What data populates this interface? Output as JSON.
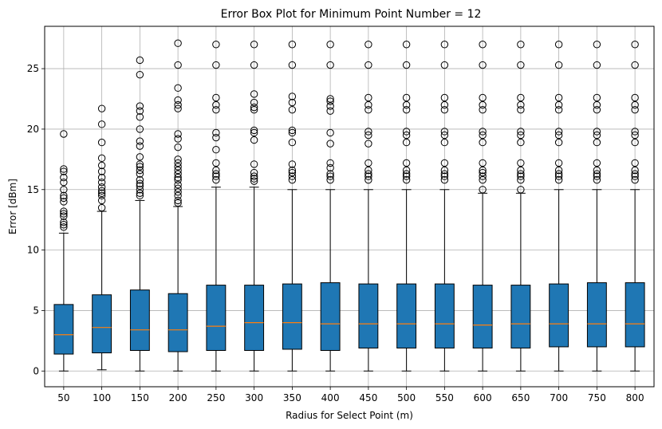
{
  "chart_data": {
    "type": "boxplot",
    "title": "Error Box Plot for Minimum Point Number = 12",
    "xlabel": "Radius for Select Point (m)",
    "ylabel": "Error [dBm]",
    "ylim": [
      -1.3,
      28.5
    ],
    "yticks": [
      0,
      5,
      10,
      15,
      20,
      25
    ],
    "grid": true,
    "box_color": "#1f77b4",
    "median_color": "#ff7f0e",
    "categories": [
      "50",
      "100",
      "150",
      "200",
      "250",
      "300",
      "350",
      "400",
      "450",
      "500",
      "550",
      "600",
      "650",
      "700",
      "750",
      "800"
    ],
    "boxes": [
      {
        "label": "50",
        "min": 0,
        "q1": 1.4,
        "median": 3.0,
        "q3": 5.5,
        "whisker_high": 11.4,
        "outliers": [
          11.9,
          12.1,
          12.3,
          12.8,
          13.0,
          13.2,
          14.0,
          14.3,
          14.5,
          15.0,
          15.6,
          16.0,
          16.5,
          16.7,
          19.6
        ]
      },
      {
        "label": "100",
        "min": 0.1,
        "q1": 1.5,
        "median": 3.6,
        "q3": 6.3,
        "whisker_high": 13.2,
        "outliers": [
          13.5,
          14.1,
          14.5,
          14.7,
          14.9,
          15.2,
          15.6,
          16.0,
          16.5,
          17.0,
          17.6,
          18.9,
          20.4,
          21.7
        ]
      },
      {
        "label": "150",
        "min": 0,
        "q1": 1.7,
        "median": 3.4,
        "q3": 6.7,
        "whisker_high": 14.1,
        "outliers": [
          14.5,
          14.7,
          15.0,
          15.3,
          15.5,
          15.8,
          16.3,
          16.6,
          16.9,
          17.1,
          17.7,
          18.6,
          19.0,
          20.0,
          21.0,
          21.5,
          21.9,
          24.5,
          25.7
        ]
      },
      {
        "label": "200",
        "min": 0,
        "q1": 1.6,
        "median": 3.4,
        "q3": 6.4,
        "whisker_high": 13.6,
        "outliers": [
          13.9,
          14.1,
          14.5,
          14.8,
          15.1,
          15.4,
          15.8,
          16.0,
          16.3,
          16.6,
          16.9,
          17.2,
          17.5,
          18.5,
          19.2,
          19.6,
          21.7,
          22.0,
          22.4,
          23.4,
          25.3,
          27.1
        ]
      },
      {
        "label": "250",
        "min": 0,
        "q1": 1.7,
        "median": 3.7,
        "q3": 7.1,
        "whisker_high": 15.2,
        "outliers": [
          15.8,
          16.1,
          16.3,
          16.6,
          17.2,
          18.3,
          19.3,
          19.7,
          21.6,
          22.0,
          22.6,
          25.3,
          27.0
        ]
      },
      {
        "label": "300",
        "min": 0,
        "q1": 1.7,
        "median": 4.0,
        "q3": 7.1,
        "whisker_high": 15.2,
        "outliers": [
          15.7,
          15.9,
          16.1,
          16.4,
          17.1,
          19.1,
          19.7,
          19.9,
          21.6,
          21.8,
          22.2,
          22.9,
          25.3,
          27.0
        ]
      },
      {
        "label": "350",
        "min": 0,
        "q1": 1.8,
        "median": 4.0,
        "q3": 7.2,
        "whisker_high": 15.0,
        "outliers": [
          15.8,
          16.1,
          16.4,
          16.6,
          17.1,
          18.9,
          19.7,
          19.9,
          21.6,
          22.2,
          22.7,
          25.3,
          27.0
        ]
      },
      {
        "label": "400",
        "min": 0,
        "q1": 1.7,
        "median": 3.9,
        "q3": 7.3,
        "whisker_high": 15.0,
        "outliers": [
          15.8,
          16.1,
          16.3,
          16.8,
          17.2,
          18.8,
          19.7,
          21.5,
          21.9,
          22.3,
          22.5,
          25.3,
          27.0
        ]
      },
      {
        "label": "450",
        "min": 0,
        "q1": 1.9,
        "median": 3.9,
        "q3": 7.2,
        "whisker_high": 15.0,
        "outliers": [
          15.8,
          16.1,
          16.3,
          16.6,
          17.2,
          18.8,
          19.5,
          19.8,
          21.6,
          22.0,
          22.6,
          25.3,
          27.0
        ]
      },
      {
        "label": "500",
        "min": 0,
        "q1": 1.9,
        "median": 3.9,
        "q3": 7.2,
        "whisker_high": 15.0,
        "outliers": [
          15.8,
          16.1,
          16.3,
          16.6,
          17.2,
          18.9,
          19.5,
          19.8,
          21.6,
          22.0,
          22.6,
          25.3,
          27.0
        ]
      },
      {
        "label": "550",
        "min": 0,
        "q1": 1.9,
        "median": 3.9,
        "q3": 7.2,
        "whisker_high": 15.0,
        "outliers": [
          15.8,
          16.1,
          16.3,
          16.6,
          17.2,
          18.9,
          19.5,
          19.8,
          21.6,
          22.0,
          22.6,
          25.3,
          27.0
        ]
      },
      {
        "label": "600",
        "min": 0,
        "q1": 1.9,
        "median": 3.8,
        "q3": 7.1,
        "whisker_high": 14.7,
        "outliers": [
          15.0,
          15.8,
          16.1,
          16.4,
          16.6,
          17.2,
          18.9,
          19.5,
          19.8,
          21.6,
          22.0,
          22.6,
          25.3,
          27.0
        ]
      },
      {
        "label": "650",
        "min": 0,
        "q1": 1.9,
        "median": 3.9,
        "q3": 7.1,
        "whisker_high": 14.7,
        "outliers": [
          15.0,
          15.8,
          16.1,
          16.3,
          16.6,
          17.2,
          18.9,
          19.5,
          19.8,
          21.6,
          22.0,
          22.6,
          25.3,
          27.0
        ]
      },
      {
        "label": "700",
        "min": 0,
        "q1": 2.0,
        "median": 3.9,
        "q3": 7.2,
        "whisker_high": 15.0,
        "outliers": [
          15.8,
          16.1,
          16.3,
          16.6,
          17.2,
          18.9,
          19.5,
          19.8,
          21.6,
          22.0,
          22.6,
          25.3,
          27.0
        ]
      },
      {
        "label": "750",
        "min": 0,
        "q1": 2.0,
        "median": 3.9,
        "q3": 7.3,
        "whisker_high": 15.0,
        "outliers": [
          15.8,
          16.1,
          16.3,
          16.6,
          17.2,
          18.9,
          19.5,
          19.8,
          21.6,
          22.0,
          22.6,
          25.3,
          27.0
        ]
      },
      {
        "label": "800",
        "min": 0,
        "q1": 2.0,
        "median": 3.9,
        "q3": 7.3,
        "whisker_high": 15.0,
        "outliers": [
          15.8,
          16.1,
          16.3,
          16.6,
          17.2,
          18.9,
          19.5,
          19.8,
          21.6,
          22.0,
          22.6,
          25.3,
          27.0
        ]
      }
    ]
  }
}
